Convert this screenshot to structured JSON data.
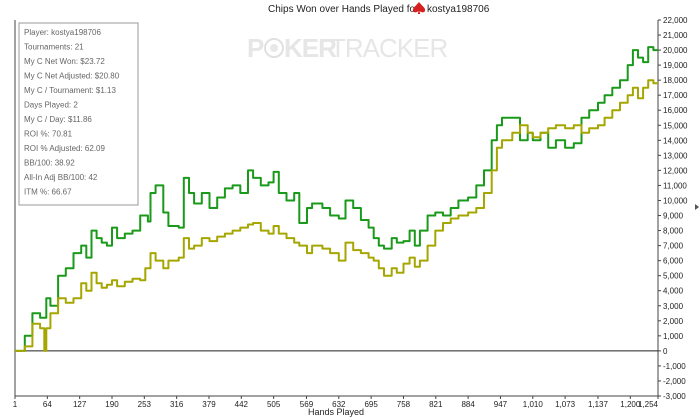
{
  "chart_data": {
    "type": "line",
    "title_prefix": "Chips Won over Hands Played for",
    "player_name": "kostya198706",
    "xlabel": "Hands Played",
    "ylabel": "",
    "xlim": [
      1,
      1254
    ],
    "ylim": [
      -3000,
      22000
    ],
    "x_ticks": [
      1,
      64,
      127,
      190,
      253,
      316,
      379,
      442,
      505,
      569,
      632,
      695,
      758,
      821,
      884,
      947,
      1010,
      1073,
      1137,
      1200,
      1254
    ],
    "x_tick_labels": [
      "1",
      "64",
      "127",
      "190",
      "253",
      "316",
      "379",
      "442",
      "505",
      "569",
      "632",
      "695",
      "758",
      "821",
      "884",
      "947",
      "1,010",
      "1,073",
      "1,137",
      "1,200",
      "1,254"
    ],
    "y_ticks": [
      -3000,
      -2000,
      -1000,
      0,
      1000,
      2000,
      3000,
      4000,
      5000,
      6000,
      7000,
      8000,
      9000,
      10000,
      11000,
      12000,
      13000,
      14000,
      15000,
      16000,
      17000,
      18000,
      19000,
      20000,
      21000,
      22000
    ],
    "y_tick_labels": [
      "-3,000",
      "-2,000",
      "-1,000",
      "0",
      "1,000",
      "2,000",
      "3,000",
      "4,000",
      "5,000",
      "6,000",
      "7,000",
      "8,000",
      "9,000",
      "10,000",
      "11,000",
      "12,000",
      "13,000",
      "14,000",
      "15,000",
      "16,000",
      "17,000",
      "18,000",
      "19,000",
      "20,000",
      "21,000",
      "22,000"
    ],
    "grid": false,
    "zero_line": true,
    "series": [
      {
        "color": "#1a9a1a",
        "points": [
          [
            1,
            0
          ],
          [
            15,
            0
          ],
          [
            20,
            1000
          ],
          [
            35,
            2500
          ],
          [
            50,
            2200
          ],
          [
            62,
            3500
          ],
          [
            70,
            3000
          ],
          [
            85,
            5000
          ],
          [
            100,
            5500
          ],
          [
            115,
            6500
          ],
          [
            130,
            7000
          ],
          [
            140,
            6200
          ],
          [
            150,
            8000
          ],
          [
            160,
            7500
          ],
          [
            170,
            7200
          ],
          [
            180,
            7000
          ],
          [
            190,
            8200
          ],
          [
            200,
            7500
          ],
          [
            215,
            7800
          ],
          [
            230,
            8000
          ],
          [
            245,
            9000
          ],
          [
            260,
            8600
          ],
          [
            265,
            10500
          ],
          [
            275,
            11000
          ],
          [
            290,
            9200
          ],
          [
            300,
            8300
          ],
          [
            320,
            8200
          ],
          [
            330,
            11500
          ],
          [
            340,
            10500
          ],
          [
            350,
            9800
          ],
          [
            365,
            10500
          ],
          [
            380,
            9500
          ],
          [
            395,
            10200
          ],
          [
            410,
            10800
          ],
          [
            425,
            11000
          ],
          [
            440,
            10500
          ],
          [
            455,
            12000
          ],
          [
            465,
            11500
          ],
          [
            480,
            11000
          ],
          [
            495,
            11200
          ],
          [
            505,
            11900
          ],
          [
            515,
            10500
          ],
          [
            530,
            10000
          ],
          [
            545,
            10500
          ],
          [
            555,
            8500
          ],
          [
            570,
            9500
          ],
          [
            580,
            9800
          ],
          [
            600,
            9500
          ],
          [
            615,
            9000
          ],
          [
            632,
            8800
          ],
          [
            645,
            10000
          ],
          [
            660,
            9500
          ],
          [
            675,
            8700
          ],
          [
            690,
            8200
          ],
          [
            700,
            7500
          ],
          [
            710,
            7000
          ],
          [
            720,
            6800
          ],
          [
            735,
            7500
          ],
          [
            745,
            7200
          ],
          [
            758,
            7300
          ],
          [
            770,
            8000
          ],
          [
            780,
            7000
          ],
          [
            790,
            8000
          ],
          [
            805,
            9000
          ],
          [
            820,
            9200
          ],
          [
            835,
            9000
          ],
          [
            850,
            9500
          ],
          [
            865,
            10000
          ],
          [
            884,
            10200
          ],
          [
            900,
            11000
          ],
          [
            915,
            12000
          ],
          [
            930,
            14000
          ],
          [
            940,
            15000
          ],
          [
            950,
            15500
          ],
          [
            970,
            15500
          ],
          [
            985,
            14000
          ],
          [
            1000,
            14500
          ],
          [
            1010,
            14000
          ],
          [
            1025,
            14500
          ],
          [
            1040,
            13500
          ],
          [
            1055,
            14000
          ],
          [
            1073,
            13500
          ],
          [
            1090,
            13800
          ],
          [
            1105,
            15500
          ],
          [
            1120,
            16000
          ],
          [
            1137,
            16500
          ],
          [
            1150,
            17000
          ],
          [
            1165,
            17500
          ],
          [
            1180,
            18000
          ],
          [
            1195,
            19000
          ],
          [
            1205,
            20000
          ],
          [
            1215,
            19500
          ],
          [
            1225,
            19200
          ],
          [
            1235,
            20200
          ],
          [
            1245,
            20000
          ],
          [
            1254,
            20000
          ]
        ]
      },
      {
        "color": "#a6a600",
        "points": [
          [
            1,
            0
          ],
          [
            15,
            0
          ],
          [
            20,
            300
          ],
          [
            35,
            1800
          ],
          [
            50,
            1500
          ],
          [
            58,
            0
          ],
          [
            62,
            1500
          ],
          [
            70,
            2500
          ],
          [
            85,
            3500
          ],
          [
            100,
            3200
          ],
          [
            115,
            3500
          ],
          [
            130,
            4500
          ],
          [
            140,
            4000
          ],
          [
            150,
            5200
          ],
          [
            160,
            4500
          ],
          [
            170,
            4200
          ],
          [
            180,
            4400
          ],
          [
            190,
            4700
          ],
          [
            200,
            4300
          ],
          [
            215,
            4600
          ],
          [
            230,
            4800
          ],
          [
            245,
            4700
          ],
          [
            255,
            5500
          ],
          [
            265,
            6500
          ],
          [
            275,
            6000
          ],
          [
            290,
            5500
          ],
          [
            300,
            6000
          ],
          [
            320,
            6200
          ],
          [
            330,
            7500
          ],
          [
            340,
            6800
          ],
          [
            350,
            7000
          ],
          [
            365,
            7500
          ],
          [
            380,
            7300
          ],
          [
            395,
            7600
          ],
          [
            410,
            7800
          ],
          [
            425,
            8000
          ],
          [
            440,
            8200
          ],
          [
            455,
            8400
          ],
          [
            465,
            8500
          ],
          [
            480,
            8000
          ],
          [
            495,
            7800
          ],
          [
            505,
            8300
          ],
          [
            515,
            7800
          ],
          [
            530,
            7500
          ],
          [
            545,
            7200
          ],
          [
            555,
            7000
          ],
          [
            570,
            6500
          ],
          [
            580,
            7000
          ],
          [
            600,
            6800
          ],
          [
            615,
            6500
          ],
          [
            632,
            6000
          ],
          [
            645,
            7200
          ],
          [
            660,
            6700
          ],
          [
            675,
            6500
          ],
          [
            690,
            6200
          ],
          [
            700,
            6000
          ],
          [
            710,
            5500
          ],
          [
            720,
            5000
          ],
          [
            735,
            5500
          ],
          [
            745,
            5200
          ],
          [
            758,
            5800
          ],
          [
            770,
            6200
          ],
          [
            780,
            5600
          ],
          [
            790,
            6000
          ],
          [
            805,
            7000
          ],
          [
            820,
            8000
          ],
          [
            835,
            8500
          ],
          [
            850,
            8800
          ],
          [
            865,
            9000
          ],
          [
            884,
            9200
          ],
          [
            900,
            9500
          ],
          [
            915,
            10500
          ],
          [
            930,
            12000
          ],
          [
            940,
            13500
          ],
          [
            950,
            14000
          ],
          [
            970,
            14500
          ],
          [
            985,
            15000
          ],
          [
            1000,
            14500
          ],
          [
            1010,
            14200
          ],
          [
            1025,
            14500
          ],
          [
            1040,
            14800
          ],
          [
            1055,
            15000
          ],
          [
            1073,
            14800
          ],
          [
            1090,
            15000
          ],
          [
            1105,
            14500
          ],
          [
            1120,
            14800
          ],
          [
            1137,
            15000
          ],
          [
            1150,
            15500
          ],
          [
            1165,
            16000
          ],
          [
            1180,
            16500
          ],
          [
            1195,
            17000
          ],
          [
            1205,
            17500
          ],
          [
            1215,
            16800
          ],
          [
            1225,
            17500
          ],
          [
            1235,
            18000
          ],
          [
            1245,
            17800
          ],
          [
            1254,
            17800
          ]
        ]
      }
    ]
  },
  "watermark": {
    "text_part1": "P",
    "text_part2": "KER",
    "text_part3": "TRACKER",
    "color": "#e6e6e6"
  },
  "stats": {
    "lines": [
      "Player: kostya198706",
      "Tournaments: 21",
      "My C Net Won: $23.72",
      "My C Net Adjusted: $20.80",
      "My C / Tournament: $1.13",
      "Days Played: 2",
      "My C / Day: $11.86",
      "ROI %: 70.81",
      "ROI % Adjusted: 62.09",
      "BB/100: 38.92",
      "All-In Adj BB/100: 42",
      "ITM %: 66.67"
    ]
  },
  "icons": {
    "player_icon": "spade-icon",
    "player_icon_color": "#d62020",
    "right_arrow_icon": "arrow-right-icon"
  }
}
